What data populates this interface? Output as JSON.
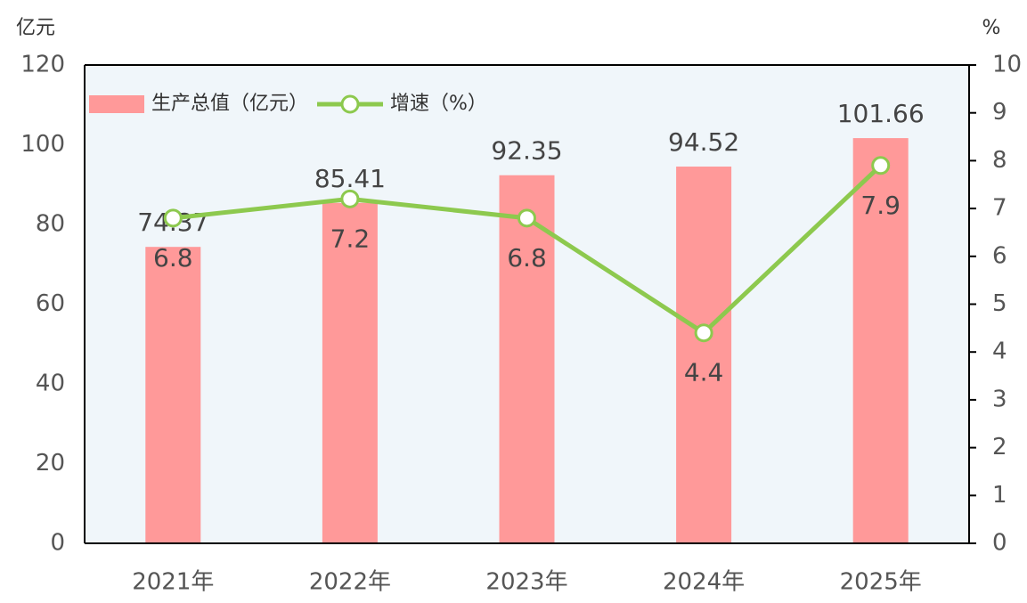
{
  "chart_data": {
    "type": "bar-line",
    "y_label": "亿元",
    "y2_label": "%",
    "categories": [
      "2021年",
      "2022年",
      "2023年",
      "2024年",
      "2025年"
    ],
    "series": [
      {
        "name": "生产总值（亿元）",
        "type": "bar",
        "color": "#ff9999",
        "values": [
          74.37,
          85.41,
          92.35,
          94.52,
          101.66
        ]
      },
      {
        "name": "增速（%）",
        "type": "line",
        "axis": "y2",
        "color": "#8dc94e",
        "values": [
          6.8,
          7.2,
          6.8,
          4.4,
          7.9
        ]
      }
    ],
    "ylim": [
      0,
      120
    ],
    "yticks": [
      0,
      20,
      40,
      60,
      80,
      100,
      120
    ],
    "y2lim": [
      0,
      10
    ],
    "y2ticks": [
      0,
      1,
      2,
      3,
      4,
      5,
      6,
      7,
      8,
      9,
      10
    ],
    "legend": "upper-left",
    "background": "#f0f6fa"
  }
}
